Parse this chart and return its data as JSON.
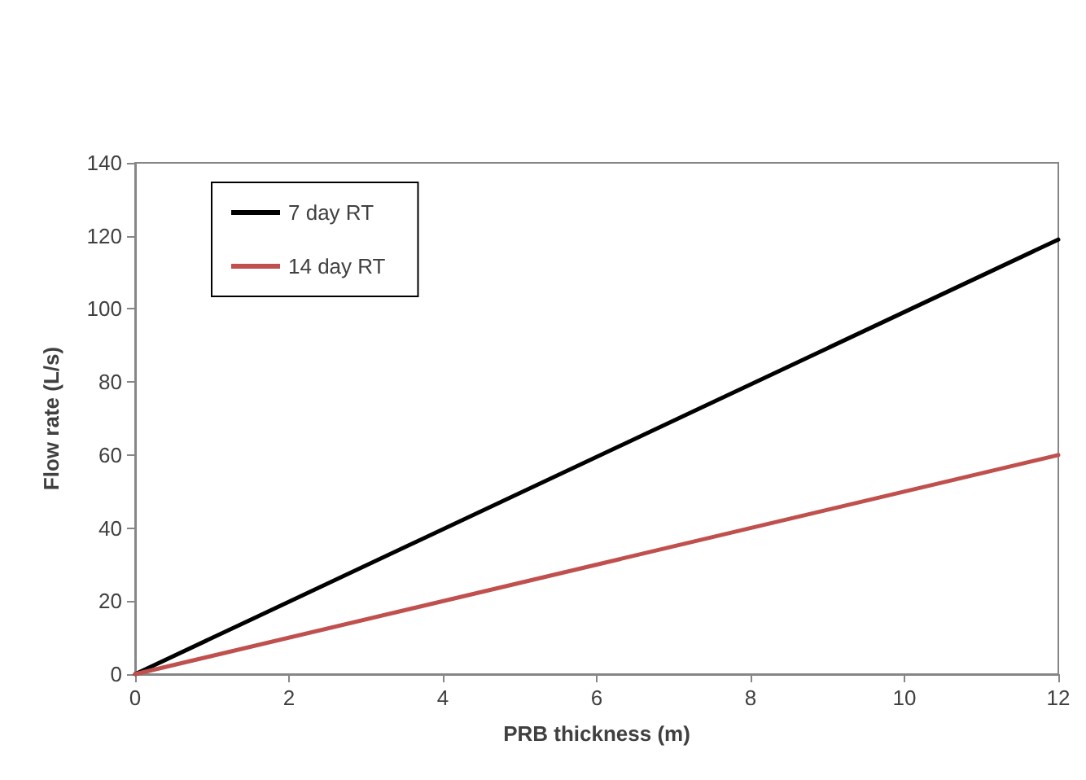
{
  "chart_data": {
    "type": "line",
    "xlabel": "PRB thickness (m)",
    "ylabel": "Flow rate (L/s)",
    "x": [
      0,
      12
    ],
    "series": [
      {
        "name": "7 day RT",
        "color": "#000000",
        "values": [
          0,
          119
        ]
      },
      {
        "name": "14 day RT",
        "color": "#c0504d",
        "values": [
          0,
          60
        ]
      }
    ],
    "xlim": [
      0,
      12
    ],
    "xticks": [
      0,
      2,
      4,
      6,
      8,
      10,
      12
    ],
    "ylim": [
      0,
      140
    ],
    "yticks": [
      0,
      20,
      40,
      60,
      80,
      100,
      120,
      140
    ],
    "grid": false,
    "legend": "top left",
    "marker": "none",
    "line_style": "solid"
  }
}
